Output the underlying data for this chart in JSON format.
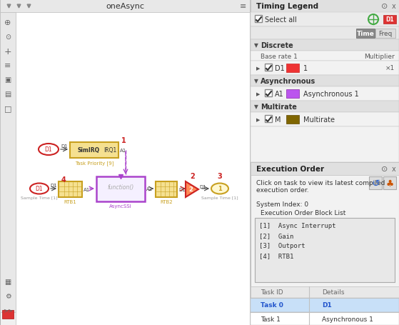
{
  "bg_color": "#f0f0f0",
  "title_text": "oneAsync",
  "timing_legend_title": "Timing Legend",
  "select_all_text": "Select all",
  "discrete_text": "Discrete",
  "base_rate_text": "Base rate 1",
  "time_text": "Time",
  "freq_text": "Freq",
  "multiplier_text": "Multiplier",
  "d1_color": "#ee3333",
  "d1_mult": "×1",
  "a1_color": "#bb55ee",
  "async1_text": "Asynchronous 1",
  "async_text": "Asynchronous",
  "multirate_text": "Multirate",
  "m_color": "#806600",
  "multirate_label": "Multirate",
  "exec_order_title": "Execution Order",
  "exec_click_text": "Click on task to view its latest compiled\nexecution order.",
  "system_index_text": "System Index: 0",
  "exec_block_list_title": "Execution Order Block List",
  "exec_blocks": [
    "[1]  Async Interrupt",
    "[2]  Gain",
    "[3]  Outport",
    "[4]  RTB1"
  ],
  "task_id_col": "Task ID",
  "details_col": "Details",
  "task0_id": "Task 0",
  "task0_detail": "D1",
  "task1_id": "Task 1",
  "task1_detail": "Asynchronous 1",
  "task0_highlight": "#c8e0f8",
  "gold_color": "#c8a020",
  "purple_color": "#aa44cc",
  "red_color": "#cc2222",
  "block_bg": "#f5e090",
  "block_border": "#c8a020"
}
